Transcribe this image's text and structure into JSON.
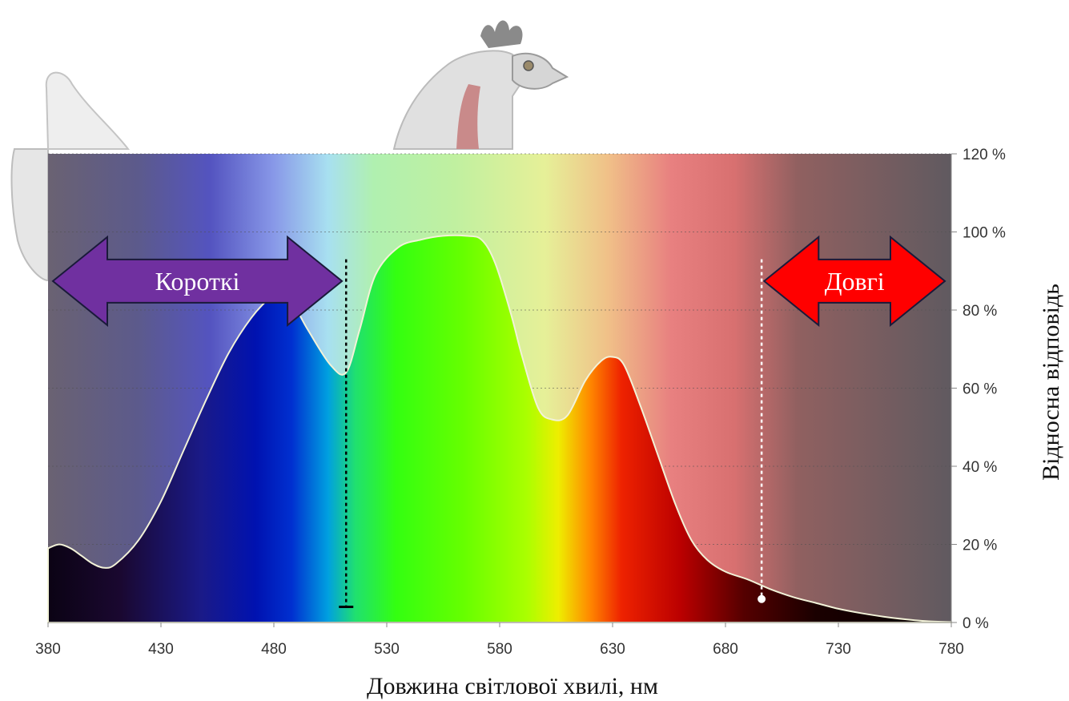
{
  "chart_data": {
    "type": "area",
    "title": "",
    "xlabel": "Довжина світлової хвилі, нм",
    "ylabel": "Відносна відповідь",
    "xlim": [
      380,
      780
    ],
    "ylim": [
      0,
      120
    ],
    "x_ticks": [
      "380",
      "430",
      "480",
      "530",
      "580",
      "630",
      "680",
      "730",
      "780"
    ],
    "y_ticks": [
      "0 %",
      "20 %",
      "40 %",
      "60 %",
      "80 %",
      "100 %",
      "120 %"
    ],
    "grid": true,
    "y_axis_side": "right",
    "series": [
      {
        "x": [
          380,
          385,
          390,
          395,
          400,
          405,
          410,
          420,
          430,
          440,
          450,
          460,
          470,
          478,
          482,
          488,
          495,
          505,
          512,
          518,
          525,
          535,
          545,
          555,
          565,
          572,
          578,
          585,
          590,
          597,
          603,
          610,
          618,
          625,
          630,
          635,
          642,
          650,
          658,
          665,
          672,
          680,
          690,
          700,
          710,
          720,
          730,
          740,
          750,
          760,
          770,
          780
        ],
        "values": [
          19,
          20,
          19,
          17,
          15,
          14,
          15,
          21,
          31,
          44,
          57,
          69,
          78,
          83,
          84,
          82,
          75,
          66,
          64,
          75,
          89,
          96,
          98,
          99,
          99,
          98,
          92,
          79,
          68,
          55,
          52,
          53,
          62,
          67,
          68,
          66,
          56,
          43,
          30,
          21,
          16,
          13,
          11,
          8.5,
          6.5,
          5,
          3.5,
          2.4,
          1.5,
          0.8,
          0.3,
          0.1
        ]
      }
    ],
    "annotations": [
      {
        "text": "Короткі",
        "type": "double-arrow",
        "color": "#7030a0",
        "x_from": 380,
        "x_to": 513,
        "y": 95
      },
      {
        "text": "Довгі",
        "type": "double-arrow",
        "color": "#ff0000",
        "x_from": 695,
        "x_to": 780,
        "y": 95
      }
    ],
    "markers": [
      {
        "x": 512,
        "y_from": 4,
        "y_to": 93,
        "style": "dotted",
        "color": "#000000"
      },
      {
        "x": 696,
        "y_from": 6,
        "y_to": 93,
        "style": "dotted",
        "color": "#ffffff"
      }
    ]
  }
}
